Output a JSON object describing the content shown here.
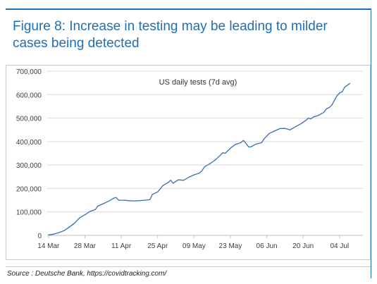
{
  "figure": {
    "title": "Figure 8: Increase in testing may be leading to milder cases being detected",
    "source": "Source : Deutsche Bank, https://covidtracking.com/"
  },
  "colors": {
    "accent": "#1f6fb5",
    "line": "#3a6fb0",
    "grid": "#d9d9d9",
    "text": "#404040"
  },
  "chart_data": {
    "type": "line",
    "title": "US daily tests (7d avg)",
    "xlabel": "",
    "ylabel": "",
    "ylim": [
      0,
      700000
    ],
    "yticks": [
      0,
      100000,
      200000,
      300000,
      400000,
      500000,
      600000,
      700000
    ],
    "ytick_labels": [
      "0",
      "100,000",
      "200,000",
      "300,000",
      "400,000",
      "500,000",
      "600,000",
      "700,000"
    ],
    "xticks": [
      "2020-03-14",
      "2020-03-28",
      "2020-04-11",
      "2020-04-25",
      "2020-05-09",
      "2020-05-23",
      "2020-06-06",
      "2020-06-20",
      "2020-07-04"
    ],
    "xtick_labels": [
      "14 Mar",
      "28 Mar",
      "11 Apr",
      "25 Apr",
      "09 May",
      "23 May",
      "06 Jun",
      "20 Jun",
      "04 Jul"
    ],
    "grid": true,
    "legend": "none",
    "series": [
      {
        "points": [
          [
            "2020-03-14",
            2000
          ],
          [
            "2020-03-16",
            5000
          ],
          [
            "2020-03-18",
            12000
          ],
          [
            "2020-03-20",
            20000
          ],
          [
            "2020-03-22",
            35000
          ],
          [
            "2020-03-24",
            52000
          ],
          [
            "2020-03-26",
            75000
          ],
          [
            "2020-03-28",
            88000
          ],
          [
            "2020-03-30",
            102000
          ],
          [
            "2020-04-01",
            110000
          ],
          [
            "2020-04-02",
            125000
          ],
          [
            "2020-04-04",
            135000
          ],
          [
            "2020-04-06",
            145000
          ],
          [
            "2020-04-08",
            158000
          ],
          [
            "2020-04-09",
            162000
          ],
          [
            "2020-04-10",
            150000
          ],
          [
            "2020-04-12",
            150000
          ],
          [
            "2020-04-14",
            148000
          ],
          [
            "2020-04-16",
            147000
          ],
          [
            "2020-04-18",
            148000
          ],
          [
            "2020-04-20",
            150000
          ],
          [
            "2020-04-22",
            152000
          ],
          [
            "2020-04-23",
            175000
          ],
          [
            "2020-04-25",
            185000
          ],
          [
            "2020-04-27",
            212000
          ],
          [
            "2020-04-29",
            225000
          ],
          [
            "2020-04-30",
            235000
          ],
          [
            "2020-05-01",
            222000
          ],
          [
            "2020-05-02",
            230000
          ],
          [
            "2020-05-03",
            237000
          ],
          [
            "2020-05-05",
            235000
          ],
          [
            "2020-05-07",
            248000
          ],
          [
            "2020-05-09",
            258000
          ],
          [
            "2020-05-11",
            265000
          ],
          [
            "2020-05-12",
            275000
          ],
          [
            "2020-05-13",
            292000
          ],
          [
            "2020-05-15",
            305000
          ],
          [
            "2020-05-17",
            320000
          ],
          [
            "2020-05-19",
            340000
          ],
          [
            "2020-05-20",
            352000
          ],
          [
            "2020-05-21",
            350000
          ],
          [
            "2020-05-23",
            372000
          ],
          [
            "2020-05-25",
            388000
          ],
          [
            "2020-05-27",
            395000
          ],
          [
            "2020-05-28",
            405000
          ],
          [
            "2020-05-29",
            392000
          ],
          [
            "2020-05-30",
            377000
          ],
          [
            "2020-05-31",
            378000
          ],
          [
            "2020-06-02",
            390000
          ],
          [
            "2020-06-04",
            395000
          ],
          [
            "2020-06-05",
            412000
          ],
          [
            "2020-06-07",
            435000
          ],
          [
            "2020-06-09",
            445000
          ],
          [
            "2020-06-11",
            455000
          ],
          [
            "2020-06-13",
            456000
          ],
          [
            "2020-06-15",
            450000
          ],
          [
            "2020-06-17",
            463000
          ],
          [
            "2020-06-19",
            475000
          ],
          [
            "2020-06-21",
            490000
          ],
          [
            "2020-06-22",
            500000
          ],
          [
            "2020-06-23",
            497000
          ],
          [
            "2020-06-24",
            505000
          ],
          [
            "2020-06-26",
            512000
          ],
          [
            "2020-06-28",
            525000
          ],
          [
            "2020-06-29",
            540000
          ],
          [
            "2020-06-30",
            545000
          ],
          [
            "2020-07-01",
            555000
          ],
          [
            "2020-07-02",
            575000
          ],
          [
            "2020-07-03",
            595000
          ],
          [
            "2020-07-04",
            607000
          ],
          [
            "2020-07-05",
            612000
          ],
          [
            "2020-07-06",
            632000
          ],
          [
            "2020-07-08",
            648000
          ]
        ]
      }
    ]
  }
}
